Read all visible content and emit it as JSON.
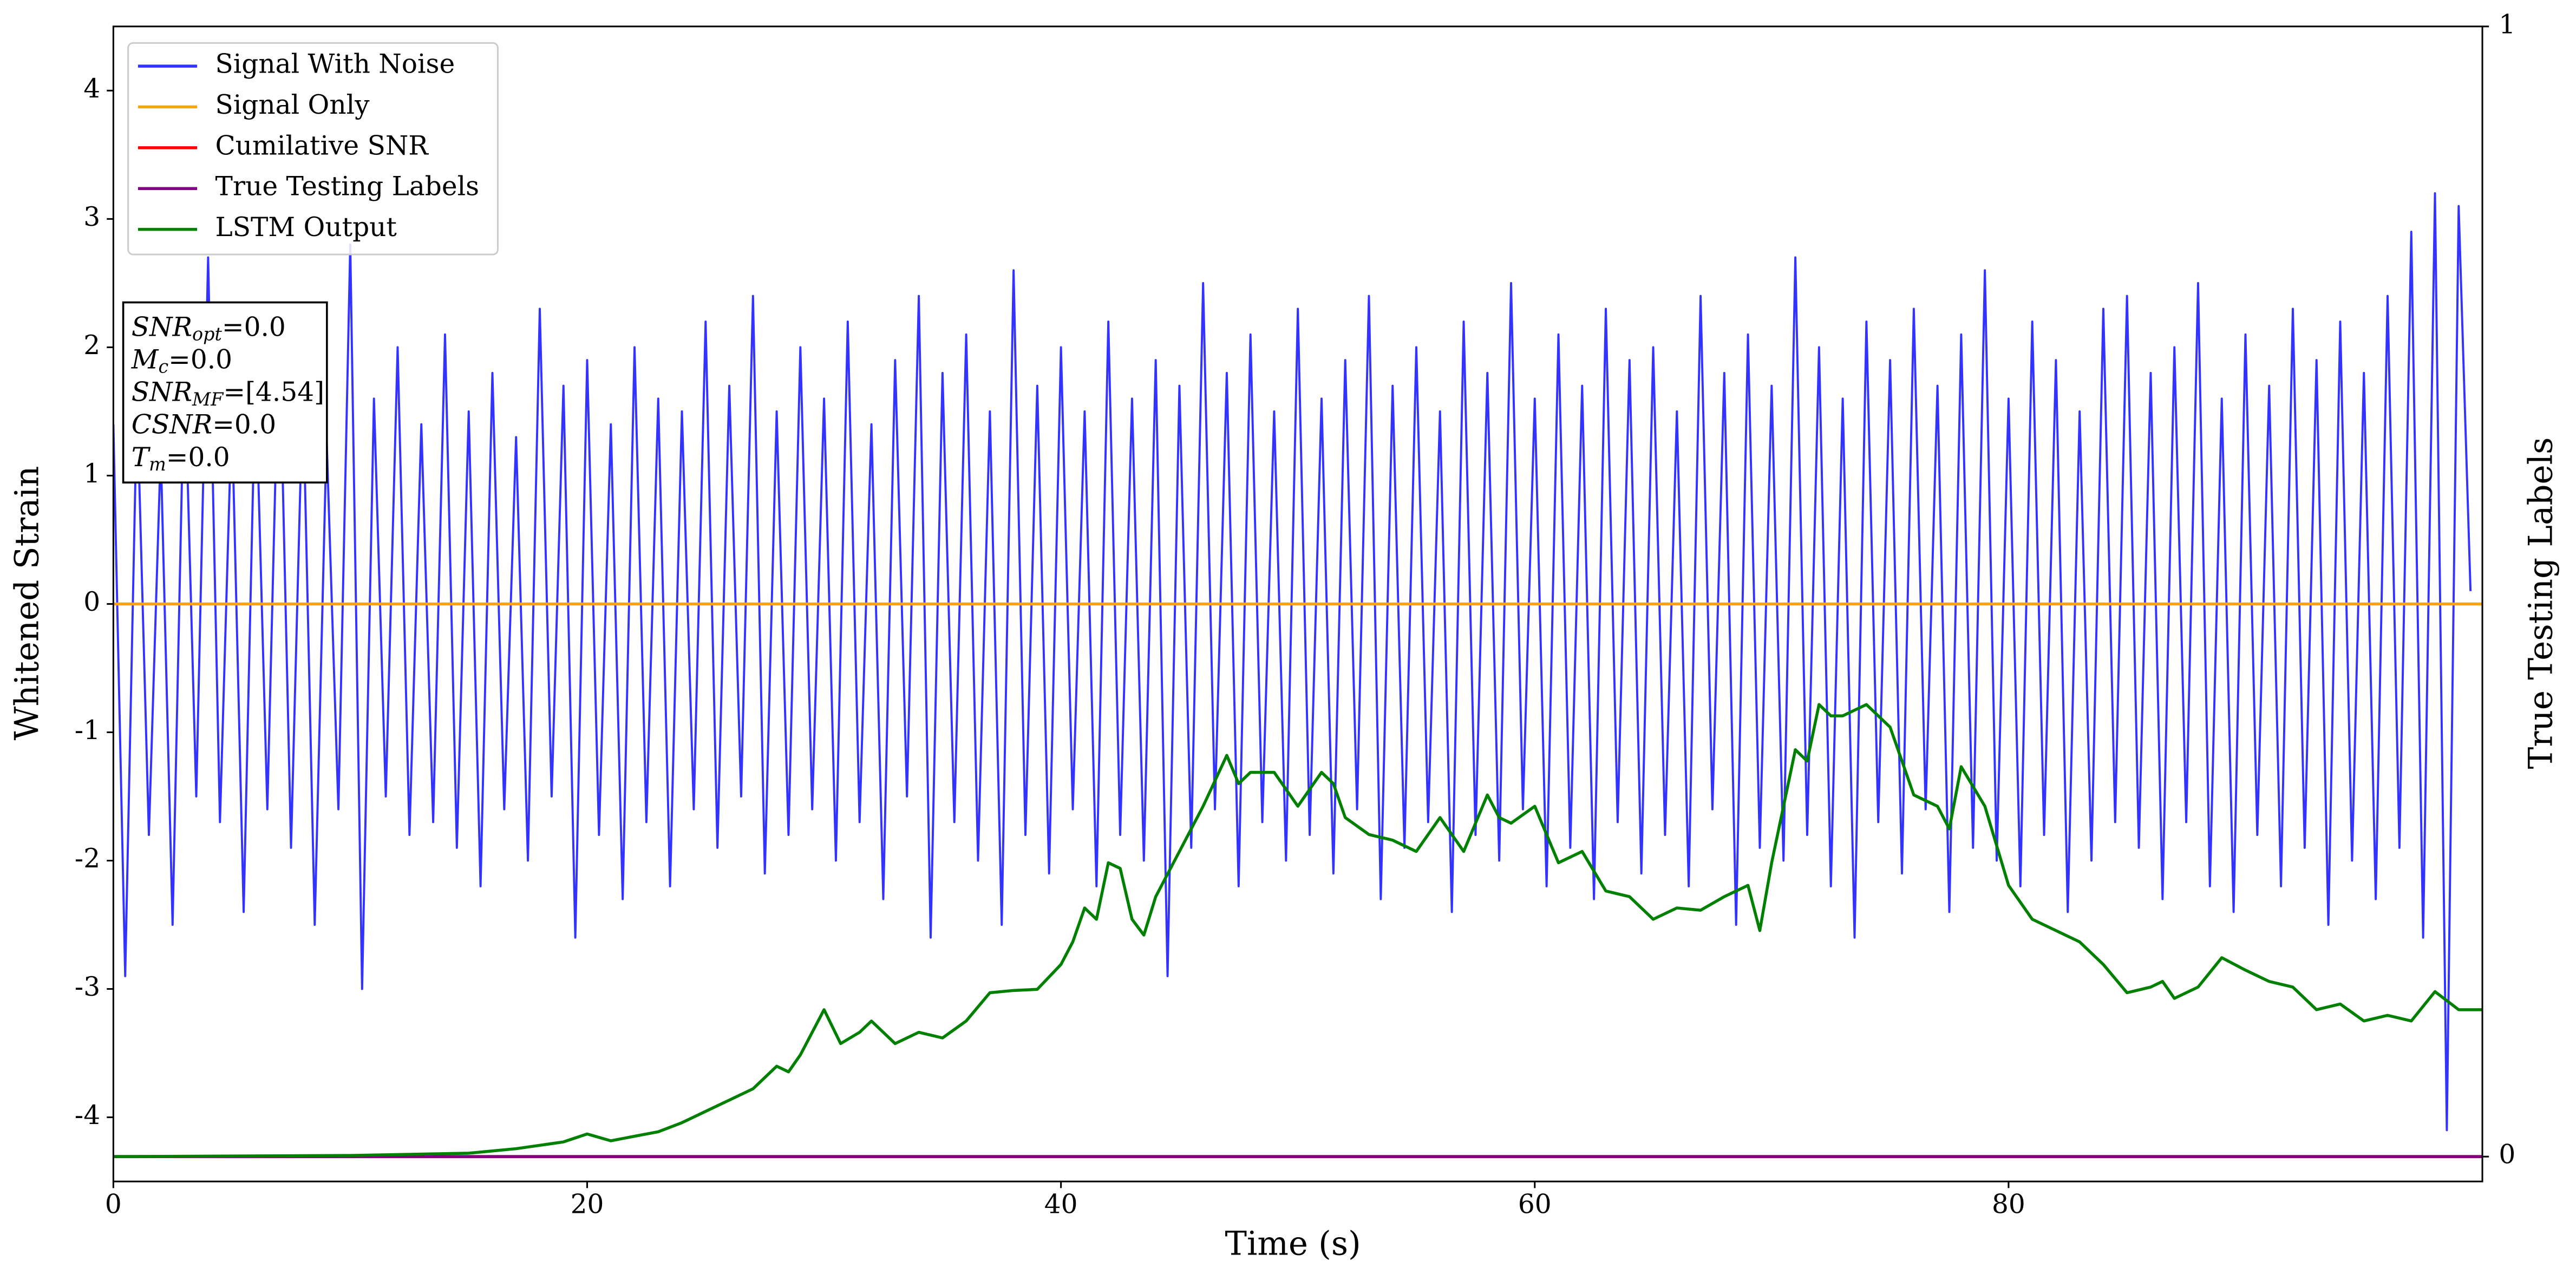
{
  "chart_data": {
    "type": "line",
    "xlabel": "Time (s)",
    "ylabel": "Whitened Strain",
    "y2label": "True Testing Labels",
    "xlim": [
      0,
      100
    ],
    "ylim": [
      -4.5,
      4.5
    ],
    "y2lim": [
      -0.022,
      1
    ],
    "xticks": [
      0,
      20,
      40,
      60,
      80
    ],
    "yticks": [
      -4,
      -3,
      -2,
      -1,
      0,
      1,
      2,
      3,
      4
    ],
    "y2ticks": [
      0,
      1
    ],
    "grid": false,
    "legend": "upper left",
    "annotation": [
      {
        "text": "SNR",
        "sub": "opt",
        "value": "=0.0"
      },
      {
        "text": "M",
        "sub": "c",
        "value": "=0.0"
      },
      {
        "text": "SNR",
        "sub": "MF",
        "value": "=[4.54]"
      },
      {
        "text": "CSNR",
        "value": "=0.0"
      },
      {
        "text": "T",
        "sub": "m",
        "value": "=0.0"
      }
    ],
    "series": [
      {
        "name": "Signal With Noise",
        "color": "#3333ff",
        "x": [
          0,
          0.5,
          1,
          1.5,
          2,
          2.5,
          3,
          3.5,
          4,
          4.5,
          5,
          5.5,
          6,
          6.5,
          7,
          7.5,
          8,
          8.5,
          9,
          9.5,
          10,
          10.5,
          11,
          11.5,
          12,
          12.5,
          13,
          13.5,
          14,
          14.5,
          15,
          15.5,
          16,
          16.5,
          17,
          17.5,
          18,
          18.5,
          19,
          19.5,
          20,
          20.5,
          21,
          21.5,
          22,
          22.5,
          23,
          23.5,
          24,
          24.5,
          25,
          25.5,
          26,
          26.5,
          27,
          27.5,
          28,
          28.5,
          29,
          29.5,
          30,
          30.5,
          31,
          31.5,
          32,
          32.5,
          33,
          33.5,
          34,
          34.5,
          35,
          35.5,
          36,
          36.5,
          37,
          37.5,
          38,
          38.5,
          39,
          39.5,
          40,
          40.5,
          41,
          41.5,
          42,
          42.5,
          43,
          43.5,
          44,
          44.5,
          45,
          45.5,
          46,
          46.5,
          47,
          47.5,
          48,
          48.5,
          49,
          49.5,
          50,
          50.5,
          51,
          51.5,
          52,
          52.5,
          53,
          53.5,
          54,
          54.5,
          55,
          55.5,
          56,
          56.5,
          57,
          57.5,
          58,
          58.5,
          59,
          59.5,
          60,
          60.5,
          61,
          61.5,
          62,
          62.5,
          63,
          63.5,
          64,
          64.5,
          65,
          65.5,
          66,
          66.5,
          67,
          67.5,
          68,
          68.5,
          69,
          69.5,
          70,
          70.5,
          71,
          71.5,
          72,
          72.5,
          73,
          73.5,
          74,
          74.5,
          75,
          75.5,
          76,
          76.5,
          77,
          77.5,
          78,
          78.5,
          79,
          79.5,
          80,
          80.5,
          81,
          81.5,
          82,
          82.5,
          83,
          83.5,
          84,
          84.5,
          85,
          85.5,
          86,
          86.5,
          87,
          87.5,
          88,
          88.5,
          89,
          89.5,
          90,
          90.5,
          91,
          91.5,
          92,
          92.5,
          93,
          93.5,
          94,
          94.5,
          95,
          95.5,
          96,
          96.5,
          97,
          97.5,
          98,
          98.5,
          99,
          99.5
        ],
        "values": [
          1.4,
          -2.9,
          1.6,
          -1.8,
          1.2,
          -2.5,
          1.9,
          -1.5,
          2.7,
          -1.7,
          1.5,
          -2.4,
          1.8,
          -1.6,
          2.2,
          -1.9,
          1.7,
          -2.5,
          1.3,
          -1.6,
          2.8,
          -3.0,
          1.6,
          -1.5,
          2.0,
          -1.8,
          1.4,
          -1.7,
          2.1,
          -1.9,
          1.5,
          -2.2,
          1.8,
          -1.6,
          1.3,
          -2.0,
          2.3,
          -1.5,
          1.7,
          -2.6,
          1.9,
          -1.8,
          1.4,
          -2.3,
          2.0,
          -1.7,
          1.6,
          -2.2,
          1.5,
          -1.6,
          2.2,
          -1.9,
          1.7,
          -1.5,
          2.4,
          -2.1,
          1.5,
          -1.8,
          2.0,
          -1.6,
          1.6,
          -2.0,
          2.2,
          -1.7,
          1.4,
          -2.3,
          1.9,
          -1.5,
          2.4,
          -2.6,
          1.8,
          -1.7,
          2.1,
          -2.0,
          1.5,
          -2.5,
          2.6,
          -1.8,
          1.7,
          -2.1,
          2.0,
          -1.6,
          1.5,
          -2.2,
          2.2,
          -1.8,
          1.6,
          -2.0,
          1.9,
          -2.9,
          1.7,
          -1.9,
          2.5,
          -1.6,
          1.8,
          -2.2,
          2.1,
          -1.7,
          1.5,
          -2.0,
          2.3,
          -1.8,
          1.6,
          -2.1,
          1.9,
          -1.6,
          2.4,
          -2.3,
          1.7,
          -1.9,
          2.0,
          -1.7,
          1.5,
          -2.4,
          2.2,
          -1.8,
          1.8,
          -2.0,
          2.5,
          -1.6,
          1.6,
          -2.2,
          2.1,
          -1.9,
          1.7,
          -2.3,
          2.3,
          -1.7,
          1.9,
          -2.1,
          2.0,
          -1.8,
          1.5,
          -2.2,
          2.4,
          -1.6,
          1.8,
          -2.5,
          2.1,
          -1.9,
          1.7,
          -2.0,
          2.7,
          -1.8,
          2.0,
          -2.2,
          1.6,
          -2.6,
          2.2,
          -1.7,
          1.9,
          -2.1,
          2.3,
          -1.6,
          1.7,
          -2.4,
          2.1,
          -1.9,
          2.6,
          -2.0,
          1.6,
          -2.2,
          2.2,
          -1.8,
          1.9,
          -2.4,
          1.5,
          -2.0,
          2.3,
          -1.7,
          2.4,
          -1.9,
          1.8,
          -2.3,
          2.0,
          -1.7,
          2.5,
          -2.2,
          1.6,
          -2.4,
          2.1,
          -1.8,
          1.7,
          -2.2,
          2.3,
          -1.9,
          1.9,
          -2.5,
          2.2,
          -2.0,
          1.8,
          -2.3,
          2.4,
          -1.9,
          2.9,
          -2.6,
          3.2,
          -4.1,
          3.1,
          0.1
        ]
      },
      {
        "name": "Signal Only",
        "color": "#ffa500",
        "x": [
          0,
          100
        ],
        "values": [
          0,
          0
        ]
      },
      {
        "name": "Cumilative SNR",
        "color": "#ff0000",
        "axis": "y2",
        "x": [
          0,
          100
        ],
        "values": [
          0,
          0
        ]
      },
      {
        "name": "True Testing Labels",
        "color": "#800080",
        "axis": "y2",
        "x": [
          0,
          100
        ],
        "values": [
          0,
          0
        ]
      },
      {
        "name": "LSTM Output",
        "color": "#008000",
        "axis": "y2",
        "x": [
          0,
          10,
          15,
          17,
          18,
          19,
          20,
          21,
          22,
          23,
          24,
          25,
          26,
          27,
          28,
          28.5,
          29,
          30,
          30.7,
          31.5,
          32,
          33,
          34,
          35,
          36,
          37,
          38,
          39,
          40,
          40.5,
          41,
          41.5,
          42,
          42.5,
          43,
          43.5,
          44,
          45,
          46,
          47,
          47.5,
          48,
          49,
          50,
          51,
          51.5,
          52,
          53,
          54,
          55,
          56,
          57,
          58,
          58.5,
          59,
          60,
          61,
          62,
          63,
          64,
          65,
          66,
          67,
          68,
          69,
          69.5,
          70,
          71,
          71.5,
          72,
          72.5,
          73,
          74,
          75,
          76,
          77,
          77.5,
          78,
          79,
          80,
          81,
          82,
          83,
          84,
          85,
          86,
          86.5,
          87,
          88,
          89,
          90,
          91,
          92,
          93,
          94,
          95,
          96,
          97,
          98,
          99,
          100
        ],
        "values": [
          0,
          0.001,
          0.003,
          0.007,
          0.01,
          0.013,
          0.02,
          0.014,
          0.018,
          0.022,
          0.03,
          0.04,
          0.05,
          0.06,
          0.08,
          0.075,
          0.09,
          0.13,
          0.1,
          0.11,
          0.12,
          0.1,
          0.11,
          0.105,
          0.12,
          0.145,
          0.147,
          0.148,
          0.17,
          0.19,
          0.22,
          0.21,
          0.26,
          0.255,
          0.21,
          0.196,
          0.23,
          0.27,
          0.31,
          0.355,
          0.33,
          0.34,
          0.34,
          0.31,
          0.34,
          0.33,
          0.3,
          0.285,
          0.28,
          0.27,
          0.3,
          0.27,
          0.32,
          0.3,
          0.295,
          0.31,
          0.26,
          0.27,
          0.235,
          0.23,
          0.21,
          0.22,
          0.218,
          0.23,
          0.24,
          0.2,
          0.26,
          0.36,
          0.35,
          0.4,
          0.39,
          0.39,
          0.4,
          0.38,
          0.32,
          0.31,
          0.29,
          0.345,
          0.31,
          0.24,
          0.21,
          0.2,
          0.19,
          0.17,
          0.145,
          0.15,
          0.155,
          0.14,
          0.15,
          0.176,
          0.165,
          0.155,
          0.15,
          0.13,
          0.135,
          0.12,
          0.125,
          0.12,
          0.146,
          0.13,
          0.13
        ]
      }
    ]
  }
}
